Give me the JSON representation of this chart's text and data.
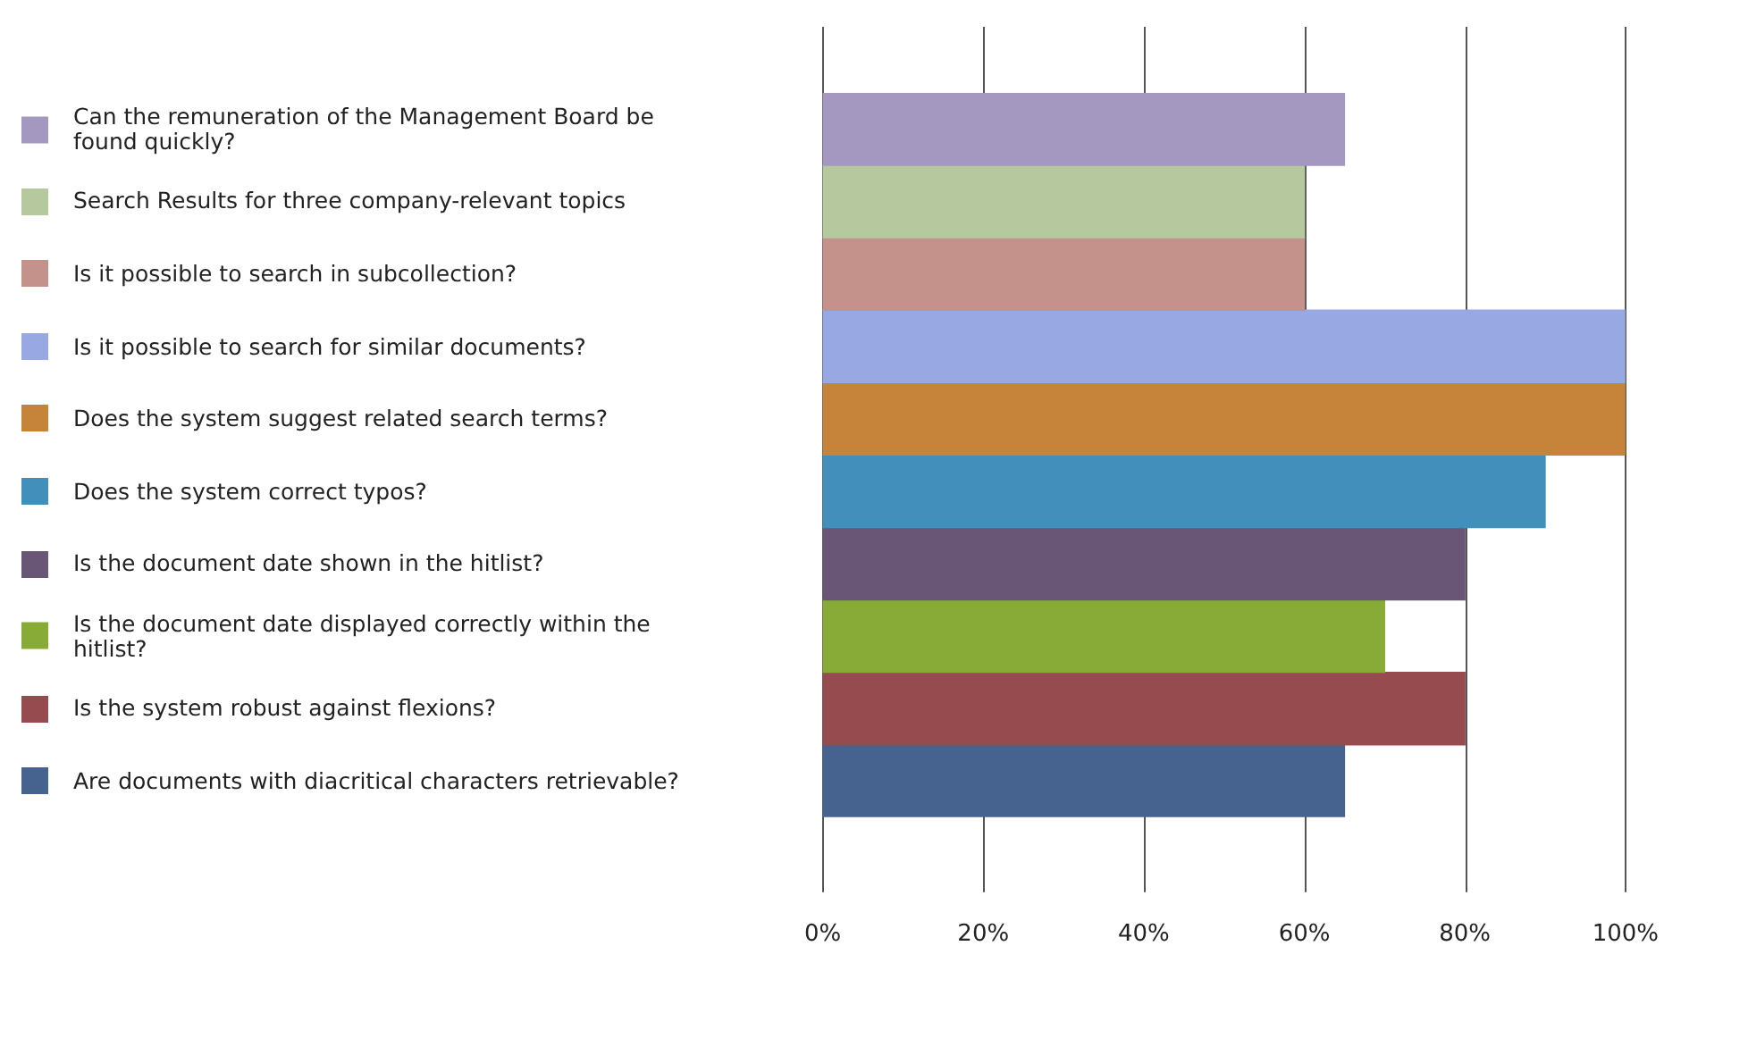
{
  "chart_data": {
    "type": "bar",
    "orientation": "horizontal",
    "stacked": true,
    "categories": [
      null,
      null,
      null,
      null,
      null,
      null,
      null,
      null,
      null,
      null
    ],
    "series": [
      {
        "name": "Can the remuneration of the Management Board be found quickly?",
        "color": "#a497c0",
        "values": [
          65,
          null,
          null,
          null,
          null,
          null,
          null,
          null,
          null,
          null
        ]
      },
      {
        "name": "Search Results for three company-relevant topics",
        "color": "#b5c89e",
        "values": [
          null,
          60,
          null,
          null,
          null,
          null,
          null,
          null,
          null,
          null
        ]
      },
      {
        "name": "Is it possible to search in subcollection?",
        "color": "#c4918b",
        "values": [
          null,
          null,
          60,
          null,
          null,
          null,
          null,
          null,
          null,
          null
        ]
      },
      {
        "name": "Is it possible to search for similar documents?",
        "color": "#98a8e3",
        "values": [
          null,
          null,
          null,
          100,
          null,
          null,
          null,
          null,
          null,
          null
        ]
      },
      {
        "name": "Does the system suggest related search terms?",
        "color": "#c5843a",
        "values": [
          null,
          null,
          null,
          null,
          100,
          null,
          null,
          null,
          null,
          null
        ]
      },
      {
        "name": "Does the system correct typos?",
        "color": "#418fba",
        "values": [
          null,
          null,
          null,
          null,
          null,
          90,
          null,
          null,
          null,
          null
        ]
      },
      {
        "name": "Is the document date shown in the hitlist?",
        "color": "#695677",
        "values": [
          null,
          null,
          null,
          null,
          null,
          null,
          80,
          null,
          null,
          null
        ]
      },
      {
        "name": "Is the document date displayed correctly within the hitlist?",
        "color": "#88ab37",
        "values": [
          null,
          null,
          null,
          null,
          null,
          null,
          null,
          70,
          null,
          null
        ]
      },
      {
        "name": "Is the system robust against flexions?",
        "color": "#964b4f",
        "values": [
          null,
          null,
          null,
          null,
          null,
          null,
          null,
          null,
          80,
          null
        ]
      },
      {
        "name": "Are documents with diacritical characters retrievable?",
        "color": "#466390",
        "values": [
          null,
          null,
          null,
          null,
          null,
          null,
          null,
          null,
          null,
          65
        ]
      }
    ],
    "xlim": [
      0,
      100
    ],
    "xticks": [
      {
        "value": 0,
        "label": "0%"
      },
      {
        "value": 20,
        "label": "20%"
      },
      {
        "value": 40,
        "label": "40%"
      },
      {
        "value": 60,
        "label": "60%"
      },
      {
        "value": 80,
        "label": "80%"
      },
      {
        "value": 100,
        "label": "100%"
      }
    ],
    "grid": "x",
    "legend": "left",
    "tick_labels": "x"
  }
}
